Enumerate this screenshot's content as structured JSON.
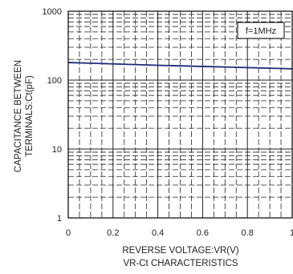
{
  "chart_data": {
    "type": "line",
    "title": "",
    "caption": "VR-Ct CHARACTERISTICS",
    "xlabel": "REVERSE VOLTAGE:VR(V)",
    "ylabel_line1": "CAPACITANCE BETWEEN",
    "ylabel_line2": "TERMINALS:Ct(pF)",
    "xlim": [
      0,
      1
    ],
    "ylim": [
      1,
      1000
    ],
    "y_scale": "log",
    "x_ticks": [
      "0",
      "0.2",
      "0.4",
      "0.6",
      "0.8",
      "1"
    ],
    "y_ticks": [
      "1",
      "10",
      "100",
      "1000"
    ],
    "grid": true,
    "annotation": "f=1MHz",
    "series": [
      {
        "x": [
          0,
          0.1,
          0.2,
          0.3,
          0.4,
          0.5,
          0.6,
          0.7,
          0.8,
          0.9,
          1.0
        ],
        "values": [
          180,
          176,
          172,
          168,
          164,
          161,
          158,
          155,
          152,
          149,
          146
        ]
      }
    ],
    "colors": {
      "series": "#1a2a78",
      "grid": "#222222",
      "frame": "#000000"
    }
  }
}
